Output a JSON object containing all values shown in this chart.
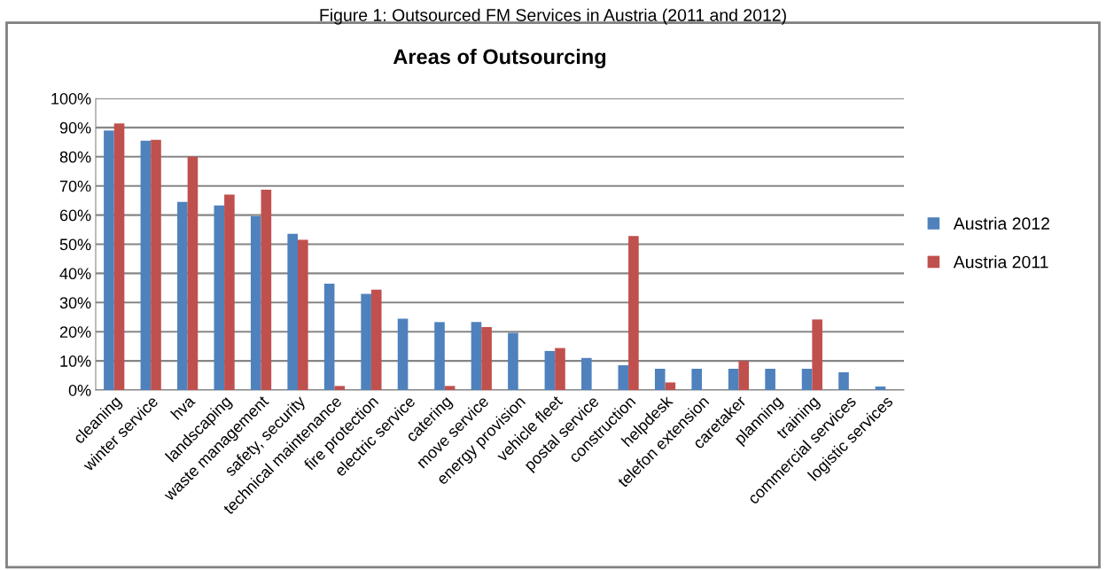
{
  "chart_data": {
    "type": "bar",
    "title": "Areas of Outsourcing",
    "annotations": [
      "Figure 1: Outsourced FM Services in Austria (2011 and 2012)"
    ],
    "categories": [
      "cleaning",
      "winter service",
      "hva",
      "landscaping",
      "waste management",
      "safety, security",
      "technical maintenance",
      "fire protection",
      "electric service",
      "catering",
      "move service",
      "energy provision",
      "vehicle fleet",
      "postal service",
      "construction",
      "helpdesk",
      "telefon extension",
      "caretaker",
      "planning",
      "training",
      "commercial services",
      "logistic services"
    ],
    "series": [
      {
        "name": "Austria 2012",
        "color": "#4f81bd",
        "values": [
          89,
          85.5,
          64.5,
          63.3,
          59.6,
          53.6,
          36.5,
          33,
          24.5,
          23.3,
          23.3,
          19.6,
          13.4,
          11,
          8.5,
          7.3,
          7.3,
          7.3,
          7.3,
          7.3,
          6.1,
          1.2
        ]
      },
      {
        "name": "Austria 2011",
        "color": "#c0504d",
        "values": [
          91.4,
          85.8,
          80,
          67,
          68.7,
          51.5,
          1.4,
          34.4,
          null,
          1.4,
          21.6,
          null,
          14.4,
          null,
          52.8,
          2.6,
          null,
          10,
          null,
          24.2,
          null,
          null
        ]
      }
    ],
    "ylim": [
      0,
      100
    ],
    "yticks": [
      {
        "value": 0,
        "label": "0%"
      },
      {
        "value": 10,
        "label": "10%"
      },
      {
        "value": 20,
        "label": "20%"
      },
      {
        "value": 30,
        "label": "30%"
      },
      {
        "value": 40,
        "label": "40%"
      },
      {
        "value": 50,
        "label": "50%"
      },
      {
        "value": 60,
        "label": "60%"
      },
      {
        "value": 70,
        "label": "70%"
      },
      {
        "value": 80,
        "label": "80%"
      },
      {
        "value": 90,
        "label": "90%"
      },
      {
        "value": 100,
        "label": "100%"
      }
    ],
    "grid": "y",
    "legend": "right"
  }
}
